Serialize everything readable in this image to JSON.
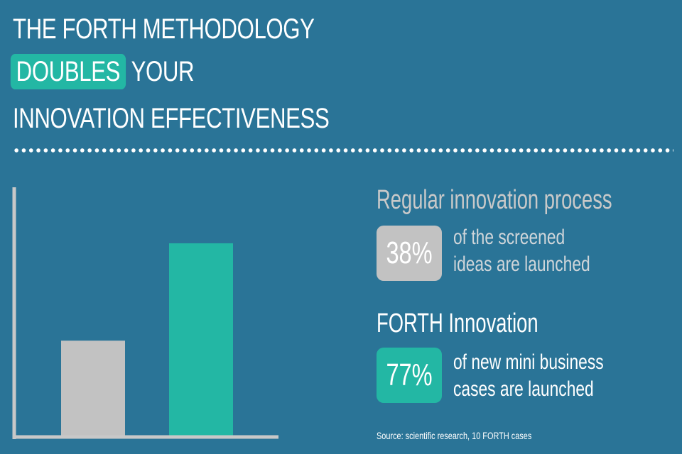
{
  "headline": {
    "line1": "THE FORTH METHODOLOGY",
    "highlight": "DOUBLES",
    "line2_rest": "YOUR",
    "line3": "INNOVATION EFFECTIVENESS"
  },
  "stats": {
    "regular": {
      "title": "Regular innovation process",
      "value": "38%",
      "desc_line1": "of the screened",
      "desc_line2": "ideas are launched"
    },
    "forth": {
      "title": "FORTH Innovation",
      "value": "77%",
      "desc_line1": "of new mini business",
      "desc_line2": "cases are launched"
    }
  },
  "source": "Source: scientific research, 10 FORTH cases",
  "colors": {
    "background": "#2a7497",
    "teal": "#23b7a4",
    "gray": "#c2c2c2",
    "axis": "#c8c8c8"
  },
  "chart_data": {
    "type": "bar",
    "categories": [
      "Regular innovation process",
      "FORTH Innovation"
    ],
    "values": [
      38,
      77
    ],
    "ylim": [
      0,
      100
    ],
    "bar_colors": [
      "#c2c2c2",
      "#23b7a4"
    ],
    "grid": false,
    "legend": "none",
    "title": "",
    "xlabel": "",
    "ylabel": ""
  }
}
